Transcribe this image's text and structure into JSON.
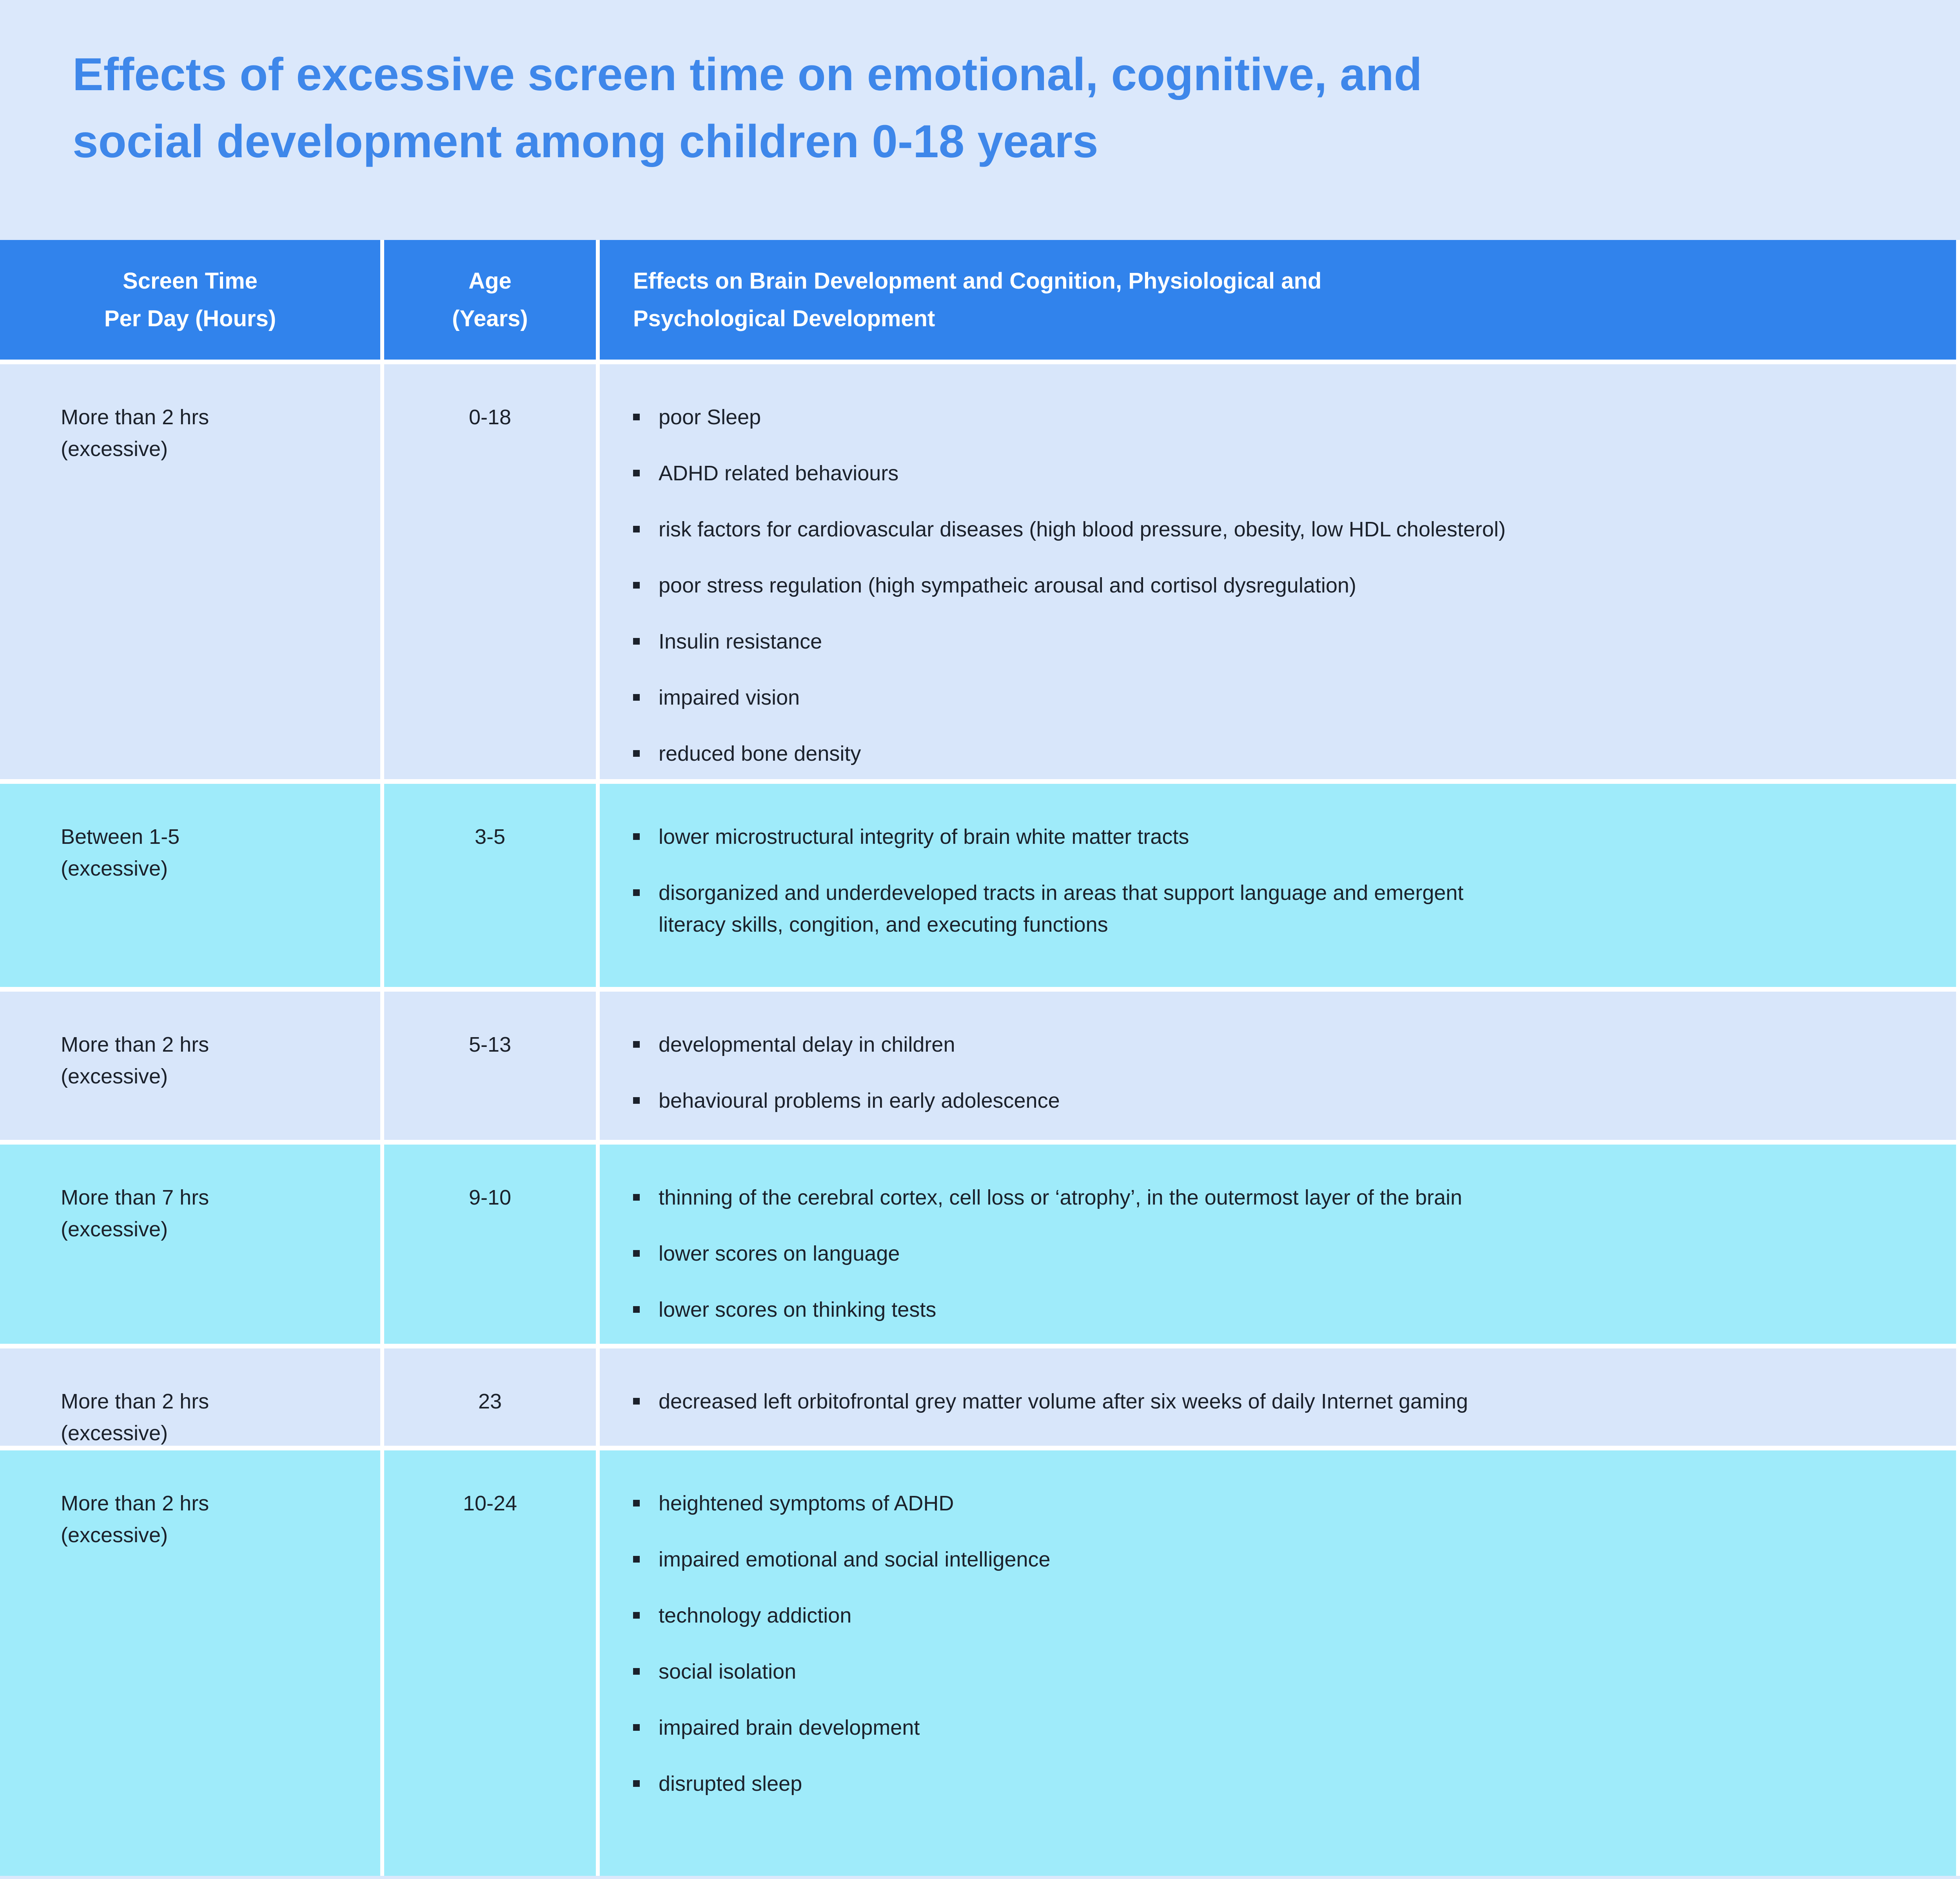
{
  "page": {
    "title": "Effects of excessive screen time on emotional, cognitive, and\nsocial development among children 0-18 years",
    "colors": {
      "page_background": "#dbe8fb",
      "header_background": "#3183ec",
      "title_text": "#3e87ea",
      "row_light": "#d8e6fa",
      "row_cyan": "#9febfa",
      "body_text": "#1b212b",
      "header_text": "#ffffff",
      "separator": "#ffffff"
    }
  },
  "table": {
    "headers": [
      "Screen Time\nPer Day (Hours)",
      "Age\n(Years)",
      "Effects on Brain Development and Cognition, Physiological and\nPsychological Development"
    ],
    "rows": [
      {
        "screen_time": "More than 2 hrs\n(excessive)",
        "age": "0-18",
        "tone": "light",
        "effects": [
          "poor Sleep",
          "ADHD related behaviours",
          "risk factors for cardiovascular diseases (high blood pressure, obesity, low HDL cholesterol)",
          "poor stress regulation (high sympatheic arousal and cortisol dysregulation)",
          "Insulin resistance",
          "impaired vision",
          "reduced bone density"
        ]
      },
      {
        "screen_time": "Between 1-5\n(excessive)",
        "age": "3-5",
        "tone": "cyan",
        "effects": [
          "lower microstructural integrity of brain white matter tracts",
          "disorganized and underdeveloped tracts in areas that support language and emergent\nliteracy skills, congition, and executing functions"
        ]
      },
      {
        "screen_time": "More than 2 hrs\n(excessive)",
        "age": "5-13",
        "tone": "light",
        "effects": [
          "developmental delay in children",
          "behavioural problems in early adolescence"
        ]
      },
      {
        "screen_time": "More than 7 hrs\n(excessive)",
        "age": "9-10",
        "tone": "cyan",
        "effects": [
          "thinning of the cerebral cortex, cell loss or ‘atrophy’, in the outermost layer of the brain",
          "lower scores on language",
          "lower scores on thinking tests"
        ]
      },
      {
        "screen_time": "More than 2 hrs\n(excessive)",
        "age": "23",
        "tone": "light",
        "effects": [
          "decreased left orbitofrontal grey matter volume after six weeks of daily Internet gaming"
        ]
      },
      {
        "screen_time": "More than 2 hrs\n(excessive)",
        "age": "10-24",
        "tone": "cyan",
        "effects": [
          "heightened symptoms of ADHD",
          "impaired emotional and social intelligence",
          "technology addiction",
          "social isolation",
          "impaired brain development",
          "disrupted sleep"
        ]
      }
    ]
  }
}
